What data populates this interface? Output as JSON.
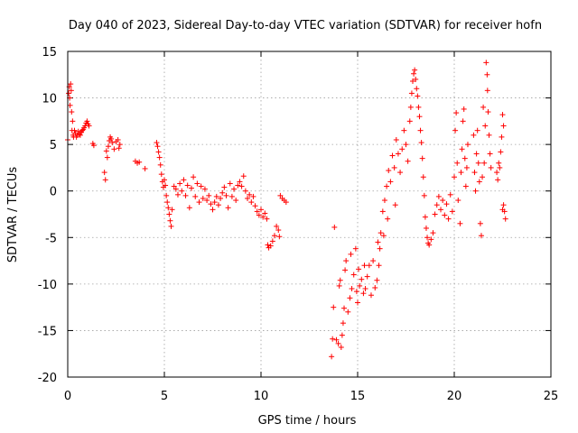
{
  "chart_data": {
    "type": "scatter",
    "title": "Day 040 of 2023, Sidereal Day-to-day VTEC variation (SDTVAR) for receiver hofn",
    "xlabel": "GPS time / hours",
    "ylabel": "SDTVAR / TECUs",
    "xlim": [
      0,
      25
    ],
    "ylim": [
      -20,
      15
    ],
    "xticks": [
      0,
      5,
      10,
      15,
      20,
      25
    ],
    "yticks": [
      -20,
      -15,
      -10,
      -5,
      0,
      5,
      10,
      15
    ],
    "grid": true,
    "marker": "+",
    "color": "#ff0000",
    "series": [
      {
        "name": "SDTVAR",
        "points": [
          [
            0.0,
            5.5
          ],
          [
            0.05,
            10.5
          ],
          [
            0.08,
            11.2
          ],
          [
            0.1,
            10.0
          ],
          [
            0.12,
            9.2
          ],
          [
            0.15,
            11.5
          ],
          [
            0.18,
            10.8
          ],
          [
            0.2,
            8.5
          ],
          [
            0.22,
            6.5
          ],
          [
            0.25,
            7.5
          ],
          [
            0.28,
            6.0
          ],
          [
            0.3,
            5.8
          ],
          [
            0.35,
            6.5
          ],
          [
            0.4,
            6.2
          ],
          [
            0.45,
            5.8
          ],
          [
            0.5,
            6.0
          ],
          [
            0.55,
            6.4
          ],
          [
            0.6,
            6.1
          ],
          [
            0.65,
            6.0
          ],
          [
            0.7,
            6.3
          ],
          [
            0.75,
            6.5
          ],
          [
            0.8,
            6.6
          ],
          [
            0.85,
            6.8
          ],
          [
            0.9,
            7.0
          ],
          [
            0.95,
            7.3
          ],
          [
            1.0,
            7.5
          ],
          [
            1.05,
            7.2
          ],
          [
            1.1,
            7.0
          ],
          [
            1.3,
            5.1
          ],
          [
            1.35,
            4.9
          ],
          [
            1.9,
            2.0
          ],
          [
            1.95,
            1.2
          ],
          [
            2.0,
            4.3
          ],
          [
            2.05,
            3.6
          ],
          [
            2.1,
            4.8
          ],
          [
            2.15,
            5.4
          ],
          [
            2.2,
            5.8
          ],
          [
            2.25,
            5.6
          ],
          [
            2.3,
            5.2
          ],
          [
            2.4,
            4.5
          ],
          [
            2.5,
            5.3
          ],
          [
            2.6,
            5.5
          ],
          [
            2.65,
            4.6
          ],
          [
            2.7,
            5.0
          ],
          [
            3.5,
            3.2
          ],
          [
            3.6,
            3.0
          ],
          [
            3.7,
            3.1
          ],
          [
            4.0,
            2.4
          ],
          [
            4.6,
            5.2
          ],
          [
            4.65,
            4.8
          ],
          [
            4.7,
            4.2
          ],
          [
            4.75,
            3.6
          ],
          [
            4.8,
            2.8
          ],
          [
            4.85,
            1.8
          ],
          [
            4.9,
            1.0
          ],
          [
            4.95,
            0.4
          ],
          [
            5.0,
            1.2
          ],
          [
            5.05,
            0.6
          ],
          [
            5.1,
            -0.5
          ],
          [
            5.15,
            -1.2
          ],
          [
            5.2,
            -1.8
          ],
          [
            5.25,
            -2.5
          ],
          [
            5.3,
            -3.2
          ],
          [
            5.35,
            -3.8
          ],
          [
            5.4,
            -2.0
          ],
          [
            5.5,
            0.5
          ],
          [
            5.6,
            0.2
          ],
          [
            5.7,
            -0.4
          ],
          [
            5.8,
            0.8
          ],
          [
            5.9,
            0.0
          ],
          [
            6.0,
            1.2
          ],
          [
            6.1,
            -0.5
          ],
          [
            6.2,
            0.6
          ],
          [
            6.3,
            -1.8
          ],
          [
            6.4,
            0.3
          ],
          [
            6.5,
            1.5
          ],
          [
            6.6,
            -0.6
          ],
          [
            6.7,
            0.8
          ],
          [
            6.8,
            -1.2
          ],
          [
            6.9,
            0.5
          ],
          [
            7.0,
            -0.8
          ],
          [
            7.1,
            0.2
          ],
          [
            7.2,
            -1.0
          ],
          [
            7.3,
            -0.5
          ],
          [
            7.4,
            -1.4
          ],
          [
            7.5,
            -2.0
          ],
          [
            7.6,
            -1.2
          ],
          [
            7.7,
            -0.6
          ],
          [
            7.8,
            -1.5
          ],
          [
            7.9,
            -0.8
          ],
          [
            8.0,
            -0.2
          ],
          [
            8.1,
            0.4
          ],
          [
            8.2,
            -0.5
          ],
          [
            8.3,
            -1.8
          ],
          [
            8.4,
            0.8
          ],
          [
            8.5,
            -0.6
          ],
          [
            8.6,
            0.2
          ],
          [
            8.7,
            -1.0
          ],
          [
            8.8,
            0.6
          ],
          [
            8.9,
            1.0
          ],
          [
            9.0,
            0.5
          ],
          [
            9.1,
            1.6
          ],
          [
            9.2,
            0.0
          ],
          [
            9.3,
            -0.8
          ],
          [
            9.4,
            -0.4
          ],
          [
            9.5,
            -1.2
          ],
          [
            9.6,
            -0.6
          ],
          [
            9.7,
            -1.6
          ],
          [
            9.8,
            -2.2
          ],
          [
            9.9,
            -2.6
          ],
          [
            10.0,
            -2.0
          ],
          [
            10.1,
            -2.8
          ],
          [
            10.2,
            -2.4
          ],
          [
            10.3,
            -3.0
          ],
          [
            10.35,
            -5.8
          ],
          [
            10.4,
            -6.1
          ],
          [
            10.5,
            -5.9
          ],
          [
            10.6,
            -5.4
          ],
          [
            10.7,
            -4.8
          ],
          [
            10.8,
            -3.8
          ],
          [
            10.9,
            -4.2
          ],
          [
            10.95,
            -4.9
          ],
          [
            11.0,
            -0.5
          ],
          [
            11.1,
            -0.8
          ],
          [
            11.2,
            -1.0
          ],
          [
            11.3,
            -1.2
          ],
          [
            13.65,
            -17.8
          ],
          [
            13.7,
            -15.9
          ],
          [
            13.75,
            -12.5
          ],
          [
            13.8,
            -3.9
          ],
          [
            13.9,
            -16.0
          ],
          [
            14.0,
            -16.4
          ],
          [
            14.05,
            -10.2
          ],
          [
            14.1,
            -9.6
          ],
          [
            14.15,
            -16.8
          ],
          [
            14.2,
            -15.5
          ],
          [
            14.25,
            -14.2
          ],
          [
            14.3,
            -12.6
          ],
          [
            14.35,
            -8.5
          ],
          [
            14.4,
            -7.5
          ],
          [
            14.5,
            -13.0
          ],
          [
            14.6,
            -11.5
          ],
          [
            14.65,
            -6.8
          ],
          [
            14.7,
            -10.5
          ],
          [
            14.8,
            -9.0
          ],
          [
            14.9,
            -6.2
          ],
          [
            14.95,
            -10.8
          ],
          [
            15.0,
            -12.0
          ],
          [
            15.05,
            -8.4
          ],
          [
            15.1,
            -10.2
          ],
          [
            15.2,
            -9.5
          ],
          [
            15.3,
            -11.0
          ],
          [
            15.35,
            -8.0
          ],
          [
            15.4,
            -10.5
          ],
          [
            15.5,
            -9.2
          ],
          [
            15.6,
            -8.0
          ],
          [
            15.7,
            -11.2
          ],
          [
            15.8,
            -7.5
          ],
          [
            15.9,
            -10.4
          ],
          [
            16.0,
            -9.6
          ],
          [
            16.05,
            -5.5
          ],
          [
            16.1,
            -8.0
          ],
          [
            16.15,
            -6.2
          ],
          [
            16.2,
            -4.5
          ],
          [
            16.3,
            -2.2
          ],
          [
            16.35,
            -4.8
          ],
          [
            16.4,
            -1.0
          ],
          [
            16.5,
            0.5
          ],
          [
            16.55,
            -3.0
          ],
          [
            16.6,
            2.2
          ],
          [
            16.7,
            1.0
          ],
          [
            16.8,
            3.8
          ],
          [
            16.9,
            2.5
          ],
          [
            16.95,
            -1.5
          ],
          [
            17.0,
            5.5
          ],
          [
            17.1,
            4.0
          ],
          [
            17.2,
            2.0
          ],
          [
            17.3,
            4.5
          ],
          [
            17.4,
            6.5
          ],
          [
            17.5,
            5.0
          ],
          [
            17.6,
            3.2
          ],
          [
            17.7,
            7.5
          ],
          [
            17.75,
            9.0
          ],
          [
            17.8,
            10.5
          ],
          [
            17.85,
            11.8
          ],
          [
            17.9,
            12.6
          ],
          [
            17.95,
            13.0
          ],
          [
            18.0,
            12.0
          ],
          [
            18.05,
            11.0
          ],
          [
            18.1,
            10.2
          ],
          [
            18.15,
            9.0
          ],
          [
            18.2,
            8.0
          ],
          [
            18.25,
            6.5
          ],
          [
            18.3,
            5.2
          ],
          [
            18.35,
            3.5
          ],
          [
            18.4,
            1.5
          ],
          [
            18.45,
            -0.5
          ],
          [
            18.5,
            -2.8
          ],
          [
            18.55,
            -4.0
          ],
          [
            18.6,
            -5.0
          ],
          [
            18.65,
            -5.6
          ],
          [
            18.7,
            -5.8
          ],
          [
            18.8,
            -5.2
          ],
          [
            18.9,
            -4.5
          ],
          [
            19.0,
            -2.5
          ],
          [
            19.1,
            -1.5
          ],
          [
            19.2,
            -0.6
          ],
          [
            19.3,
            -2.0
          ],
          [
            19.4,
            -1.0
          ],
          [
            19.5,
            -2.6
          ],
          [
            19.6,
            -1.4
          ],
          [
            19.7,
            -3.0
          ],
          [
            19.8,
            -0.4
          ],
          [
            19.9,
            -2.2
          ],
          [
            20.0,
            1.5
          ],
          [
            20.05,
            6.5
          ],
          [
            20.1,
            8.4
          ],
          [
            20.15,
            3.0
          ],
          [
            20.2,
            -1.0
          ],
          [
            20.3,
            -3.5
          ],
          [
            20.35,
            2.0
          ],
          [
            20.4,
            4.5
          ],
          [
            20.45,
            7.5
          ],
          [
            20.5,
            8.8
          ],
          [
            20.55,
            3.5
          ],
          [
            20.6,
            0.5
          ],
          [
            20.65,
            2.5
          ],
          [
            20.7,
            5.0
          ],
          [
            21.0,
            6.0
          ],
          [
            21.05,
            2.0
          ],
          [
            21.1,
            0.0
          ],
          [
            21.15,
            4.0
          ],
          [
            21.2,
            6.5
          ],
          [
            21.25,
            3.0
          ],
          [
            21.3,
            1.0
          ],
          [
            21.35,
            -3.5
          ],
          [
            21.4,
            -4.8
          ],
          [
            21.45,
            1.5
          ],
          [
            21.5,
            9.0
          ],
          [
            21.55,
            3.0
          ],
          [
            21.6,
            7.0
          ],
          [
            21.65,
            13.8
          ],
          [
            21.7,
            12.5
          ],
          [
            21.72,
            10.8
          ],
          [
            21.75,
            8.5
          ],
          [
            21.8,
            6.0
          ],
          [
            21.85,
            4.0
          ],
          [
            21.9,
            2.5
          ],
          [
            22.2,
            2.0
          ],
          [
            22.25,
            1.2
          ],
          [
            22.3,
            3.0
          ],
          [
            22.35,
            2.5
          ],
          [
            22.4,
            4.2
          ],
          [
            22.45,
            5.8
          ],
          [
            22.5,
            8.2
          ],
          [
            22.55,
            7.0
          ],
          [
            22.6,
            -2.2
          ],
          [
            22.65,
            -3.0
          ],
          [
            22.5,
            -2.0
          ],
          [
            22.55,
            -1.5
          ]
        ]
      }
    ]
  }
}
